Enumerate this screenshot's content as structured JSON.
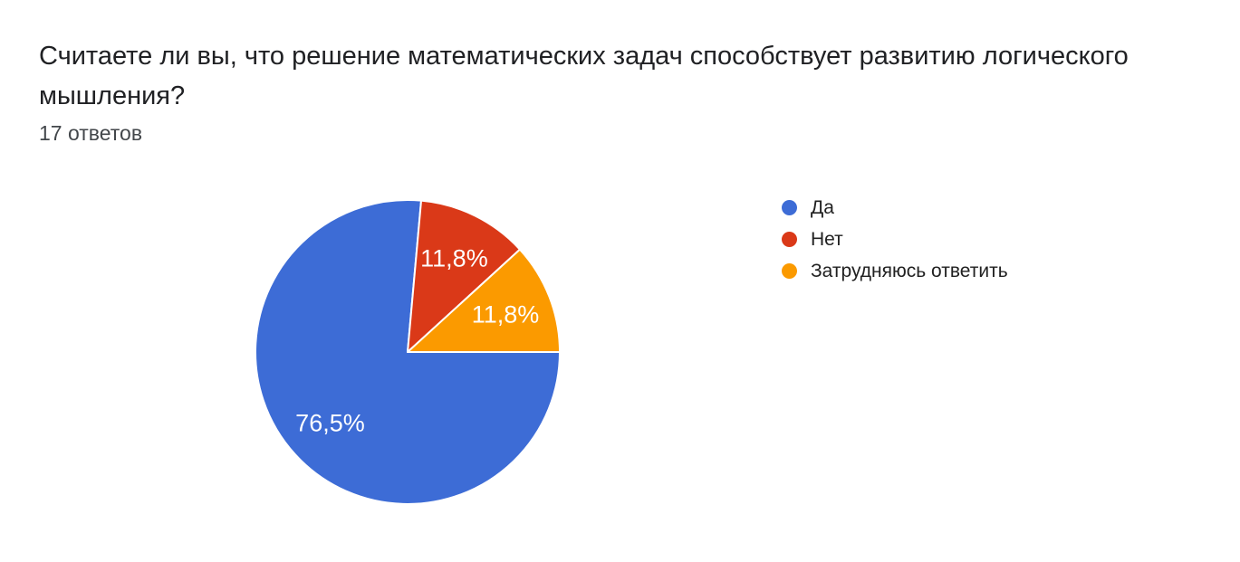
{
  "question": {
    "title_lines": [
      "Считаете ли вы, что решение математических задач способствует развитию логического",
      "мышления?"
    ],
    "responses_label": "17 ответов"
  },
  "chart_data": {
    "type": "pie",
    "title": "Считаете ли вы, что решение математических задач способствует развитию логического мышления?",
    "subtitle": "17 ответов",
    "total_responses": 17,
    "categories": [
      "Да",
      "Нет",
      "Затрудняюсь ответить"
    ],
    "values": [
      13,
      2,
      2
    ],
    "percentages": [
      76.5,
      11.8,
      11.8
    ],
    "percent_labels": [
      "76,5%",
      "11,8%",
      "11,8%"
    ],
    "colors": [
      "#3d6cd6",
      "#da3918",
      "#fb9a00"
    ],
    "slice_border_color": "#ffffff",
    "label_color": "#ffffff",
    "legend_position": "right",
    "start_angle_deg": 90,
    "direction": "clockwise"
  }
}
